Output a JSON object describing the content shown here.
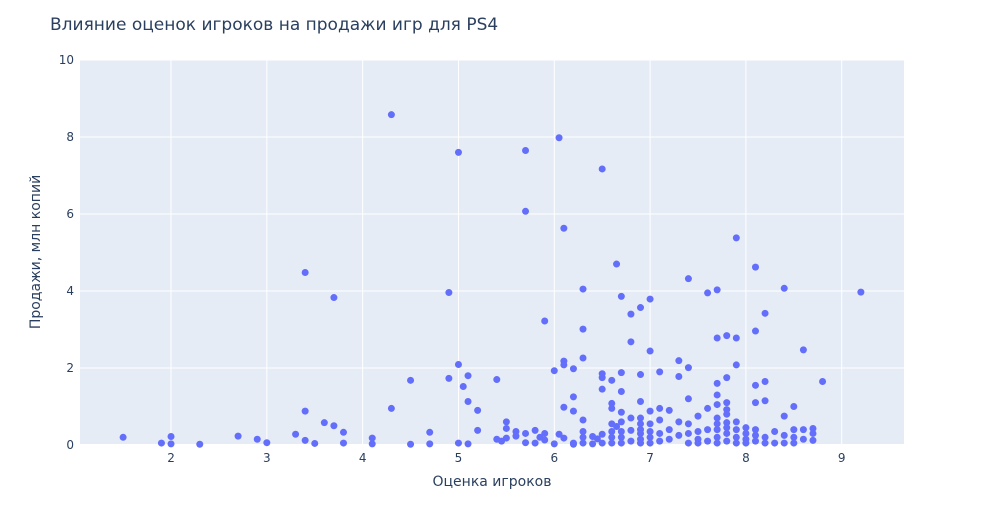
{
  "chart_data": {
    "type": "scatter",
    "title": "Влияние оценок игроков на продажи игр для PS4",
    "xlabel": "Оценка игроков",
    "ylabel": "Продажи, млн копий",
    "xlim": [
      1.05,
      9.65
    ],
    "ylim": [
      0,
      10
    ],
    "xticks": [
      2,
      3,
      4,
      5,
      6,
      7,
      8,
      9
    ],
    "yticks": [
      0,
      2,
      4,
      6,
      8,
      10
    ],
    "grid": true,
    "marker_color": "#636efa",
    "plot_bg": "#e5ecf6",
    "series": [
      {
        "x": [
          1.5,
          1.9,
          2.0,
          2.0,
          2.3,
          2.7,
          2.9,
          3.0,
          3.3,
          3.4,
          3.4,
          3.4,
          3.5,
          3.6,
          3.7,
          3.7,
          3.8,
          3.8,
          4.1,
          4.1,
          4.3,
          4.3,
          4.5,
          4.5,
          4.7,
          4.7,
          4.9,
          4.9,
          5.0,
          5.0,
          5.0,
          5.05,
          5.1,
          5.1,
          5.1,
          5.2,
          5.2,
          5.4,
          5.4,
          5.45,
          5.5,
          5.5,
          5.5,
          5.6,
          5.6,
          5.7,
          5.7,
          5.7,
          5.7,
          5.8,
          5.8,
          5.85,
          5.9,
          5.9,
          5.9,
          6.0,
          6.0,
          6.05,
          6.05,
          6.1,
          6.1,
          6.1,
          6.1,
          6.1,
          6.2,
          6.2,
          6.2,
          6.2,
          6.2,
          6.3,
          6.3,
          6.3,
          6.3,
          6.3,
          6.3,
          6.3,
          6.4,
          6.4,
          6.45,
          6.5,
          6.5,
          6.5,
          6.5,
          6.5,
          6.5,
          6.6,
          6.6,
          6.6,
          6.6,
          6.6,
          6.6,
          6.6,
          6.65,
          6.65,
          6.7,
          6.7,
          6.7,
          6.7,
          6.7,
          6.7,
          6.7,
          6.7,
          6.8,
          6.8,
          6.8,
          6.8,
          6.8,
          6.9,
          6.9,
          6.9,
          6.9,
          6.9,
          6.9,
          6.9,
          6.9,
          6.9,
          7.0,
          7.0,
          7.0,
          7.0,
          7.0,
          7.0,
          7.0,
          7.1,
          7.1,
          7.1,
          7.1,
          7.1,
          7.2,
          7.2,
          7.2,
          7.3,
          7.3,
          7.3,
          7.3,
          7.4,
          7.4,
          7.4,
          7.4,
          7.4,
          7.4,
          7.5,
          7.5,
          7.5,
          7.5,
          7.6,
          7.6,
          7.6,
          7.6,
          7.7,
          7.7,
          7.7,
          7.7,
          7.7,
          7.7,
          7.7,
          7.7,
          7.7,
          7.7,
          7.8,
          7.8,
          7.8,
          7.8,
          7.8,
          7.8,
          7.8,
          7.8,
          7.8,
          7.9,
          7.9,
          7.9,
          7.9,
          7.9,
          7.9,
          7.9,
          8.0,
          8.0,
          8.0,
          8.0,
          8.1,
          8.1,
          8.1,
          8.1,
          8.1,
          8.1,
          8.1,
          8.2,
          8.2,
          8.2,
          8.2,
          8.2,
          8.3,
          8.3,
          8.4,
          8.4,
          8.4,
          8.4,
          8.5,
          8.5,
          8.5,
          8.5,
          8.6,
          8.6,
          8.6,
          8.7,
          8.7,
          8.7,
          8.8,
          9.2
        ],
        "y": [
          0.2,
          0.05,
          0.22,
          0.03,
          0.02,
          0.23,
          0.15,
          0.06,
          0.28,
          4.48,
          0.88,
          0.12,
          0.04,
          0.58,
          3.83,
          0.5,
          0.33,
          0.05,
          0.18,
          0.03,
          8.58,
          0.95,
          1.68,
          0.02,
          0.33,
          0.03,
          3.96,
          1.73,
          7.6,
          2.09,
          0.05,
          1.52,
          1.8,
          1.13,
          0.03,
          0.9,
          0.38,
          1.7,
          0.15,
          0.1,
          0.6,
          0.43,
          0.18,
          0.35,
          0.23,
          7.65,
          6.07,
          0.3,
          0.06,
          0.38,
          0.05,
          0.2,
          3.22,
          0.3,
          0.13,
          1.93,
          0.03,
          7.98,
          0.28,
          5.63,
          2.18,
          2.08,
          0.98,
          0.18,
          1.98,
          1.25,
          0.88,
          0.05,
          0.02,
          4.05,
          3.01,
          2.26,
          0.65,
          0.35,
          0.2,
          0.05,
          0.22,
          0.03,
          0.16,
          7.17,
          1.85,
          1.75,
          1.45,
          0.28,
          0.05,
          1.68,
          1.08,
          0.95,
          0.55,
          0.35,
          0.2,
          0.05,
          4.7,
          0.48,
          3.86,
          1.88,
          1.39,
          0.85,
          0.6,
          0.35,
          0.2,
          0.05,
          3.4,
          2.68,
          0.7,
          0.38,
          0.1,
          3.57,
          1.83,
          1.13,
          0.7,
          0.55,
          0.4,
          0.3,
          0.15,
          0.05,
          3.79,
          2.44,
          0.88,
          0.55,
          0.35,
          0.2,
          0.05,
          1.9,
          0.95,
          0.65,
          0.3,
          0.1,
          0.9,
          0.4,
          0.15,
          2.19,
          1.78,
          0.6,
          0.25,
          4.32,
          2.01,
          1.2,
          0.55,
          0.3,
          0.05,
          0.75,
          0.35,
          0.15,
          0.05,
          3.95,
          0.95,
          0.4,
          0.1,
          4.03,
          2.78,
          1.6,
          1.3,
          1.05,
          0.7,
          0.55,
          0.4,
          0.2,
          0.05,
          2.84,
          1.75,
          1.1,
          0.92,
          0.8,
          0.58,
          0.45,
          0.3,
          0.1,
          5.38,
          2.78,
          2.08,
          0.6,
          0.4,
          0.2,
          0.05,
          0.45,
          0.3,
          0.15,
          0.05,
          4.62,
          2.96,
          1.55,
          1.1,
          0.4,
          0.25,
          0.1,
          3.42,
          1.65,
          1.15,
          0.2,
          0.05,
          0.35,
          0.05,
          4.07,
          0.75,
          0.25,
          0.05,
          1.0,
          0.4,
          0.2,
          0.05,
          2.47,
          0.4,
          0.15,
          0.43,
          0.3,
          0.12,
          1.65,
          3.97
        ]
      }
    ]
  }
}
